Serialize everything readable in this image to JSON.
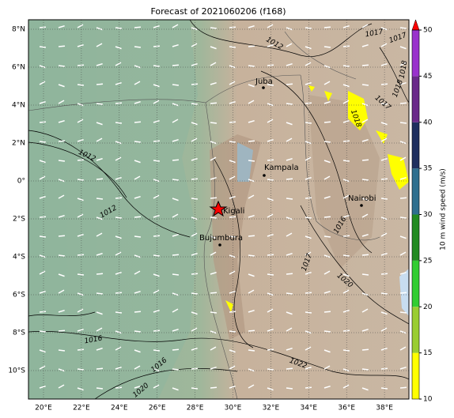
{
  "title": "Forecast of 2021060206 (f168)",
  "lat_labels": [
    "8°N",
    "6°N",
    "4°N",
    "2°N",
    "0°",
    "2°S",
    "4°S",
    "6°S",
    "8°S",
    "10°S"
  ],
  "lon_labels": [
    "20°E",
    "22°E",
    "24°E",
    "26°E",
    "28°E",
    "30°E",
    "32°E",
    "34°E",
    "36°E",
    "38°E"
  ],
  "cities": [
    "Juba",
    "Kampala",
    "Kigali",
    "Bujumbura",
    "Nairobi"
  ],
  "contour_labels": [
    "1012",
    "1017",
    "1017",
    "1018",
    "1018",
    "1017",
    "1012",
    "1012",
    "1016",
    "1016",
    "1020",
    "1020",
    "1017",
    "1016",
    "1022",
    "1018"
  ],
  "colorbar": {
    "label": "10 m wind speed (m/s)",
    "lim": [
      10,
      50
    ],
    "ticks": [
      10,
      15,
      20,
      25,
      30,
      35,
      40,
      45,
      50
    ],
    "colors": [
      "#ffff00",
      "#9acd32",
      "#32cd32",
      "#228b22",
      "#2f6f8f",
      "#1f2f5f",
      "#6a2a8a",
      "#9932cc"
    ],
    "extend_color": "#ff0000"
  }
}
